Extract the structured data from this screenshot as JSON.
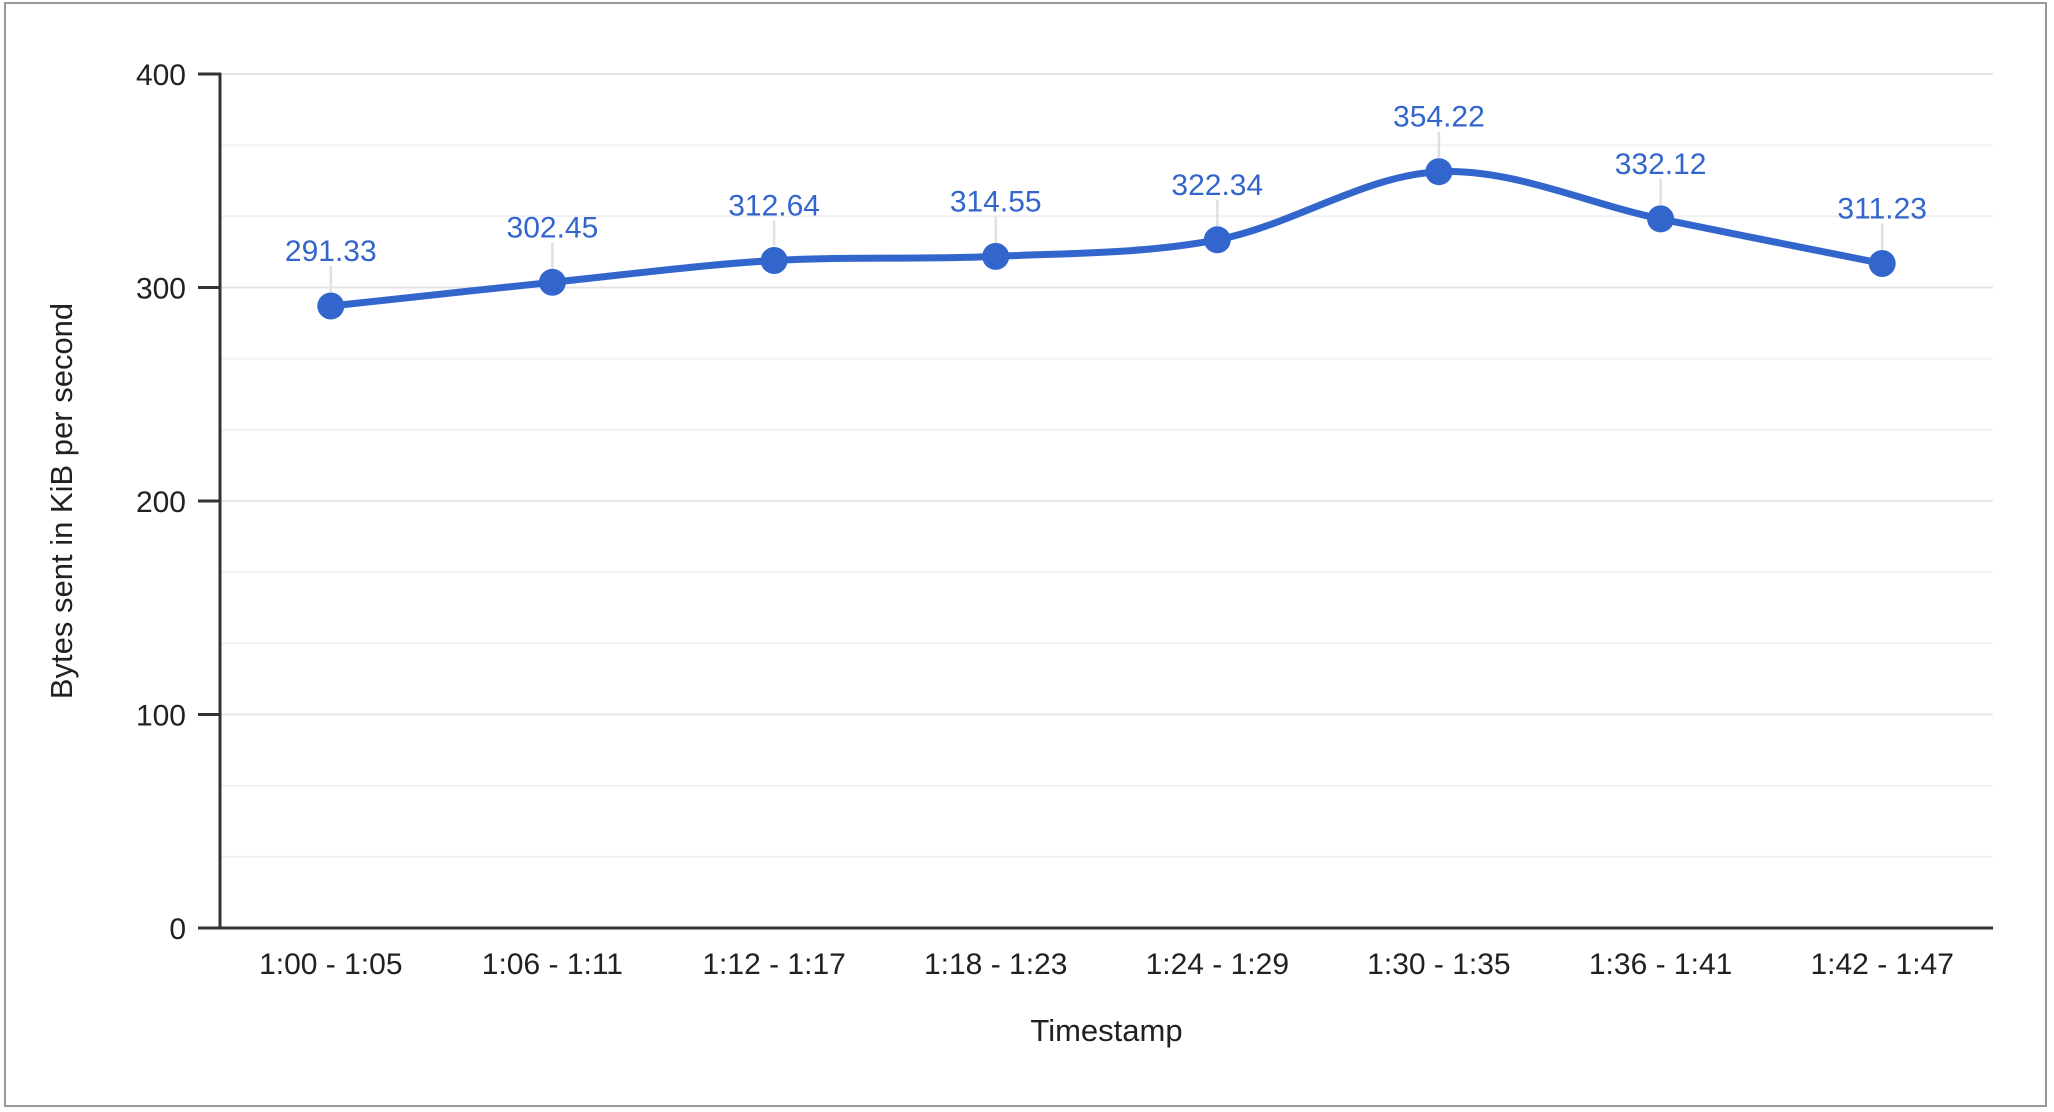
{
  "chart_data": {
    "type": "line",
    "categories": [
      "1:00 - 1:05",
      "1:06 - 1:11",
      "1:12 - 1:17",
      "1:18 - 1:23",
      "1:24 - 1:29",
      "1:30 - 1:35",
      "1:36 - 1:41",
      "1:42 - 1:47"
    ],
    "values": [
      291.33,
      302.45,
      312.64,
      314.55,
      322.34,
      354.22,
      332.12,
      311.23
    ],
    "point_labels": [
      "291.33",
      "302.45",
      "312.64",
      "314.55",
      "322.34",
      "354.22",
      "332.12",
      "311.23"
    ],
    "xlabel": "Timestamp",
    "ylabel": "Bytes sent in KiB per second",
    "ylim": [
      0,
      400
    ],
    "yticks": [
      0,
      100,
      200,
      300,
      400
    ],
    "minor_gridlines_between_major": 2,
    "grid": true,
    "legend": "none",
    "line_smooth": true,
    "marker": "circle"
  },
  "style": {
    "series_color": "#3366CC",
    "data_label_color": "#3366CC",
    "axis_text_color": "#212121",
    "axis_line_color": "#333333",
    "tick_color": "#333333",
    "major_gridline_color": "#E6E6E6",
    "minor_gridline_color": "#F1F1F1",
    "leader_line_color": "#E0E0E0",
    "frame_border_color": "#999999",
    "background_color": "#FFFFFF"
  }
}
